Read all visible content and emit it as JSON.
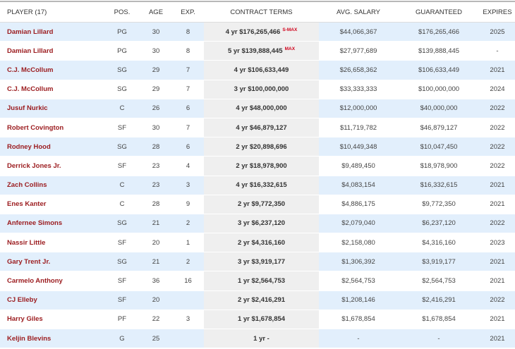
{
  "headers": {
    "player": "PLAYER (17)",
    "pos": "POS.",
    "age": "AGE",
    "exp": "EXP.",
    "terms": "CONTRACT TERMS",
    "avg": "AVG. SALARY",
    "guaranteed": "GUARANTEED",
    "expires": "EXPIRES"
  },
  "rows": [
    {
      "player": "Damian Lillard",
      "pos": "PG",
      "age": "30",
      "exp": "8",
      "terms": "4 yr $176,265,466",
      "tag": "S-MAX",
      "avg": "$44,066,367",
      "guaranteed": "$176,265,466",
      "expires": "2025"
    },
    {
      "player": "Damian Lillard",
      "pos": "PG",
      "age": "30",
      "exp": "8",
      "terms": "5 yr $139,888,445",
      "tag": "MAX",
      "avg": "$27,977,689",
      "guaranteed": "$139,888,445",
      "expires": "-"
    },
    {
      "player": "C.J. McCollum",
      "pos": "SG",
      "age": "29",
      "exp": "7",
      "terms": "4 yr $106,633,449",
      "avg": "$26,658,362",
      "guaranteed": "$106,633,449",
      "expires": "2021"
    },
    {
      "player": "C.J. McCollum",
      "pos": "SG",
      "age": "29",
      "exp": "7",
      "terms": "3 yr $100,000,000",
      "avg": "$33,333,333",
      "guaranteed": "$100,000,000",
      "expires": "2024"
    },
    {
      "player": "Jusuf Nurkic",
      "pos": "C",
      "age": "26",
      "exp": "6",
      "terms": "4 yr $48,000,000",
      "avg": "$12,000,000",
      "guaranteed": "$40,000,000",
      "expires": "2022"
    },
    {
      "player": "Robert Covington",
      "pos": "SF",
      "age": "30",
      "exp": "7",
      "terms": "4 yr $46,879,127",
      "avg": "$11,719,782",
      "guaranteed": "$46,879,127",
      "expires": "2022"
    },
    {
      "player": "Rodney Hood",
      "pos": "SG",
      "age": "28",
      "exp": "6",
      "terms": "2 yr $20,898,696",
      "avg": "$10,449,348",
      "guaranteed": "$10,047,450",
      "expires": "2022"
    },
    {
      "player": "Derrick Jones Jr.",
      "pos": "SF",
      "age": "23",
      "exp": "4",
      "terms": "2 yr $18,978,900",
      "avg": "$9,489,450",
      "guaranteed": "$18,978,900",
      "expires": "2022"
    },
    {
      "player": "Zach Collins",
      "pos": "C",
      "age": "23",
      "exp": "3",
      "terms": "4 yr $16,332,615",
      "avg": "$4,083,154",
      "guaranteed": "$16,332,615",
      "expires": "2021"
    },
    {
      "player": "Enes Kanter",
      "pos": "C",
      "age": "28",
      "exp": "9",
      "terms": "2 yr $9,772,350",
      "avg": "$4,886,175",
      "guaranteed": "$9,772,350",
      "expires": "2021"
    },
    {
      "player": "Anfernee Simons",
      "pos": "SG",
      "age": "21",
      "exp": "2",
      "terms": "3 yr $6,237,120",
      "avg": "$2,079,040",
      "guaranteed": "$6,237,120",
      "expires": "2022"
    },
    {
      "player": "Nassir Little",
      "pos": "SF",
      "age": "20",
      "exp": "1",
      "terms": "2 yr $4,316,160",
      "avg": "$2,158,080",
      "guaranteed": "$4,316,160",
      "expires": "2023"
    },
    {
      "player": "Gary Trent Jr.",
      "pos": "SG",
      "age": "21",
      "exp": "2",
      "terms": "3 yr $3,919,177",
      "avg": "$1,306,392",
      "guaranteed": "$3,919,177",
      "expires": "2021"
    },
    {
      "player": "Carmelo Anthony",
      "pos": "SF",
      "age": "36",
      "exp": "16",
      "terms": "1 yr $2,564,753",
      "avg": "$2,564,753",
      "guaranteed": "$2,564,753",
      "expires": "2021"
    },
    {
      "player": "CJ Elleby",
      "pos": "SF",
      "age": "20",
      "exp": "",
      "terms": "2 yr $2,416,291",
      "avg": "$1,208,146",
      "guaranteed": "$2,416,291",
      "expires": "2022"
    },
    {
      "player": "Harry Giles",
      "pos": "PF",
      "age": "22",
      "exp": "3",
      "terms": "1 yr $1,678,854",
      "avg": "$1,678,854",
      "guaranteed": "$1,678,854",
      "expires": "2021"
    },
    {
      "player": "Keljin Blevins",
      "pos": "G",
      "age": "25",
      "exp": "",
      "terms": "1 yr -",
      "avg": "-",
      "guaranteed": "-",
      "expires": "2021"
    }
  ]
}
